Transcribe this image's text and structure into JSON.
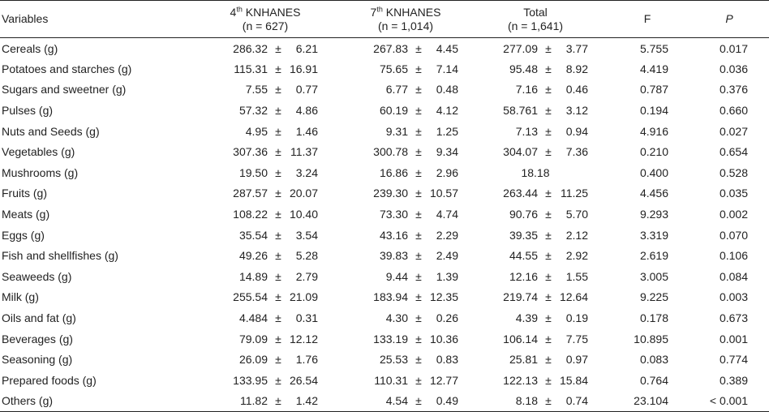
{
  "header": {
    "variables": "Variables",
    "col1_prefix": "4",
    "col1_sup": "th",
    "col1_name": " KNHANES",
    "col1_n": "(n = 627)",
    "col2_prefix": "7",
    "col2_sup": "th",
    "col2_name": " KNHANES",
    "col2_n": "(n = 1,014)",
    "col3_name": "Total",
    "col3_n": "(n = 1,641)",
    "f": "F",
    "p": "P"
  },
  "pm": "±",
  "rows": [
    {
      "var": "Cereals (g)",
      "m1": "286.32",
      "s1": "6.21",
      "m2": "267.83",
      "s2": "4.45",
      "m3": "277.09",
      "s3": "3.77",
      "f": "5.755",
      "p": "0.017"
    },
    {
      "var": "Potatoes and starches (g)",
      "m1": "115.31",
      "s1": "16.91",
      "m2": "75.65",
      "s2": "7.14",
      "m3": "95.48",
      "s3": "8.92",
      "f": "4.419",
      "p": "0.036"
    },
    {
      "var": "Sugars and sweetner (g)",
      "m1": "7.55",
      "s1": "0.77",
      "m2": "6.77",
      "s2": "0.48",
      "m3": "7.16",
      "s3": "0.46",
      "f": "0.787",
      "p": "0.376"
    },
    {
      "var": "Pulses (g)",
      "m1": "57.32",
      "s1": "4.86",
      "m2": "60.19",
      "s2": "4.12",
      "m3": "58.761",
      "s3": "3.12",
      "f": "0.194",
      "p": "0.660"
    },
    {
      "var": "Nuts and Seeds (g)",
      "m1": "4.95",
      "s1": "1.46",
      "m2": "9.31",
      "s2": "1.25",
      "m3": "7.13",
      "s3": "0.94",
      "f": "4.916",
      "p": "0.027"
    },
    {
      "var": "Vegetables (g)",
      "m1": "307.36",
      "s1": "11.37",
      "m2": "300.78",
      "s2": "9.34",
      "m3": "304.07",
      "s3": "7.36",
      "f": "0.210",
      "p": "0.654"
    },
    {
      "var": "Mushrooms (g)",
      "m1": "19.50",
      "s1": "3.24",
      "m2": "16.86",
      "s2": "2.96",
      "m3": "18.18",
      "s3": "",
      "f": "0.400",
      "p": "0.528"
    },
    {
      "var": "Fruits (g)",
      "m1": "287.57",
      "s1": "20.07",
      "m2": "239.30",
      "s2": "10.57",
      "m3": "263.44",
      "s3": "11.25",
      "f": "4.456",
      "p": "0.035"
    },
    {
      "var": "Meats (g)",
      "m1": "108.22",
      "s1": "10.40",
      "m2": "73.30",
      "s2": "4.74",
      "m3": "90.76",
      "s3": "5.70",
      "f": "9.293",
      "p": "0.002"
    },
    {
      "var": "Eggs (g)",
      "m1": "35.54",
      "s1": "3.54",
      "m2": "43.16",
      "s2": "2.29",
      "m3": "39.35",
      "s3": "2.12",
      "f": "3.319",
      "p": "0.070"
    },
    {
      "var": "Fish and shellfishes (g)",
      "m1": "49.26",
      "s1": "5.28",
      "m2": "39.83",
      "s2": "2.49",
      "m3": "44.55",
      "s3": "2.92",
      "f": "2.619",
      "p": "0.106"
    },
    {
      "var": "Seaweeds (g)",
      "m1": "14.89",
      "s1": "2.79",
      "m2": "9.44",
      "s2": "1.39",
      "m3": "12.16",
      "s3": "1.55",
      "f": "3.005",
      "p": "0.084"
    },
    {
      "var": "Milk (g)",
      "m1": "255.54",
      "s1": "21.09",
      "m2": "183.94",
      "s2": "12.35",
      "m3": "219.74",
      "s3": "12.64",
      "f": "9.225",
      "p": "0.003"
    },
    {
      "var": "Oils and fat (g)",
      "m1": "4.484",
      "s1": "0.31",
      "m2": "4.30",
      "s2": "0.26",
      "m3": "4.39",
      "s3": "0.19",
      "f": "0.178",
      "p": "0.673"
    },
    {
      "var": "Beverages (g)",
      "m1": "79.09",
      "s1": "12.12",
      "m2": "133.19",
      "s2": "10.36",
      "m3": "106.14",
      "s3": "7.75",
      "f": "10.895",
      "p": "0.001"
    },
    {
      "var": "Seasoning (g)",
      "m1": "26.09",
      "s1": "1.76",
      "m2": "25.53",
      "s2": "0.83",
      "m3": "25.81",
      "s3": "0.97",
      "f": "0.083",
      "p": "0.774"
    },
    {
      "var": "Prepared foods (g)",
      "m1": "133.95",
      "s1": "26.54",
      "m2": "110.31",
      "s2": "12.77",
      "m3": "122.13",
      "s3": "15.84",
      "f": "0.764",
      "p": "0.389"
    },
    {
      "var": "Others (g)",
      "m1": "11.82",
      "s1": "1.42",
      "m2": "4.54",
      "s2": "0.49",
      "m3": "8.18",
      "s3": "0.74",
      "f": "23.104",
      "p": "< 0.001"
    }
  ]
}
